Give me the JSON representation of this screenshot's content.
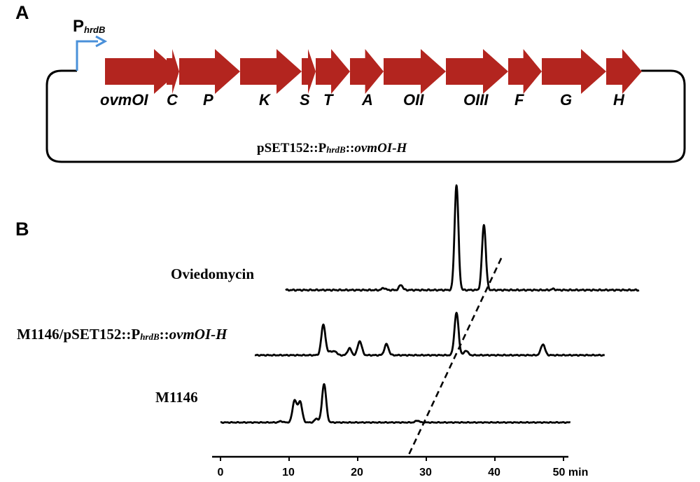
{
  "panel_a": {
    "letter": "A",
    "promoter": {
      "main": "P",
      "sub": "hrdB"
    },
    "plasmid_label": {
      "prefix": "pSET152::P",
      "sub": "hrdB",
      "mid": "::",
      "italic": "ovmOI-H"
    },
    "genes": [
      {
        "label": "ovmOI"
      },
      {
        "label": "C"
      },
      {
        "label": "P"
      },
      {
        "label": "K"
      },
      {
        "label": "S"
      },
      {
        "label": "T"
      },
      {
        "label": "A"
      },
      {
        "label": "OII"
      },
      {
        "label": "OIII"
      },
      {
        "label": "F"
      },
      {
        "label": "G"
      },
      {
        "label": "H"
      }
    ],
    "colors": {
      "gene_arrow": "#b3251f",
      "promoter_arrow": "#4a90d9",
      "backbone": "#000000"
    }
  },
  "panel_b": {
    "letter": "B",
    "x_axis": {
      "ticks": [
        "0",
        "10",
        "20",
        "30",
        "40",
        "50"
      ],
      "unit": "min"
    },
    "traces": [
      {
        "name": "Oviedomycin"
      },
      {
        "name_prefix": "M1146/pSET152::P",
        "name_sub": "hrdB",
        "name_mid": "::",
        "name_italic": "ovmOI-H"
      },
      {
        "name": "M1146"
      }
    ]
  },
  "chart_data": {
    "type": "line",
    "xlabel": "min",
    "xlim": [
      0,
      50
    ],
    "x_ticks": [
      0,
      10,
      20,
      30,
      40,
      50
    ],
    "y_axis": "none",
    "series": [
      {
        "name": "Oviedomycin",
        "x_range": [
          9.5,
          61
        ],
        "peaks": [
          {
            "rt": 23.8,
            "height": 0.02
          },
          {
            "rt": 26.3,
            "height": 0.05
          },
          {
            "rt": 34.4,
            "height": 1.0
          },
          {
            "rt": 38.4,
            "height": 0.62
          },
          {
            "rt": 48.5,
            "height": 0.01
          }
        ]
      },
      {
        "name": "M1146/pSET152::PhrdB::ovmOI-H",
        "x_range": [
          5,
          56
        ],
        "peaks": [
          {
            "rt": 15.0,
            "height": 0.39
          },
          {
            "rt": 16.0,
            "height": 0.05
          },
          {
            "rt": 16.7,
            "height": 0.05
          },
          {
            "rt": 18.8,
            "height": 0.09
          },
          {
            "rt": 20.3,
            "height": 0.18
          },
          {
            "rt": 24.2,
            "height": 0.14
          },
          {
            "rt": 34.4,
            "height": 0.54
          },
          {
            "rt": 35.8,
            "height": 0.06
          },
          {
            "rt": 47.0,
            "height": 0.14
          }
        ]
      },
      {
        "name": "M1146",
        "x_range": [
          0,
          51
        ],
        "peaks": [
          {
            "rt": 8.8,
            "height": 0.02
          },
          {
            "rt": 10.8,
            "height": 0.35
          },
          {
            "rt": 11.6,
            "height": 0.33
          },
          {
            "rt": 14.0,
            "height": 0.06
          },
          {
            "rt": 15.1,
            "height": 0.61
          },
          {
            "rt": 28.7,
            "height": 0.03
          }
        ]
      }
    ],
    "annotations": [
      {
        "type": "dashed-line",
        "from": {
          "rt": 27.5
        },
        "to": {
          "rt": 41
        }
      }
    ]
  }
}
